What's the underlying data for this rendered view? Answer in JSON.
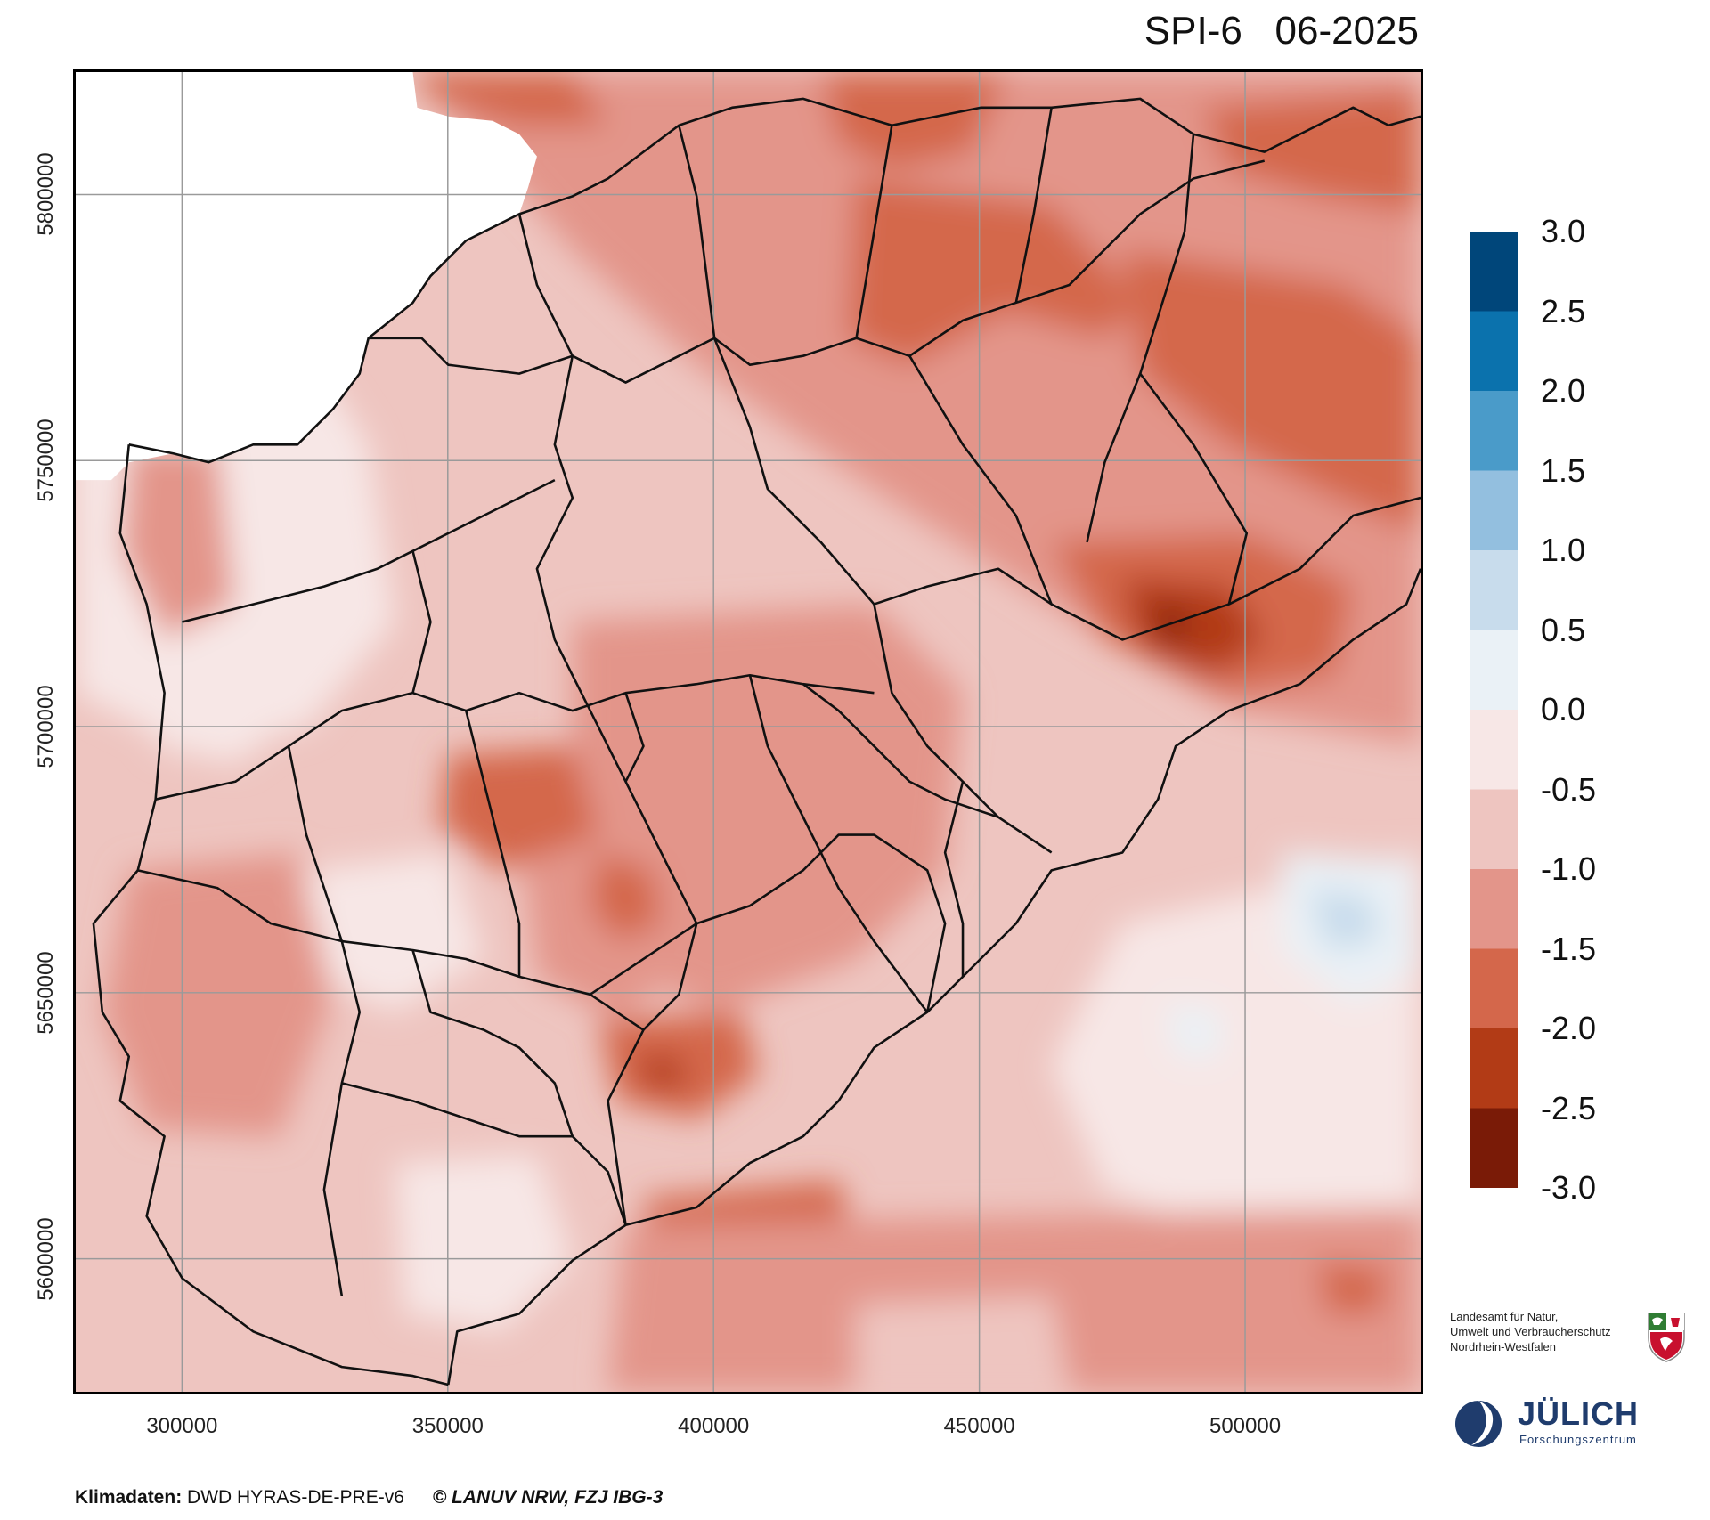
{
  "title": "SPI-6   06-2025",
  "map": {
    "x_ticks": [
      "300000",
      "350000",
      "400000",
      "450000",
      "500000"
    ],
    "y_ticks": [
      "5800000",
      "5750000",
      "5700000",
      "5650000",
      "5600000"
    ],
    "x_tick_values": [
      300000,
      350000,
      400000,
      450000,
      500000
    ],
    "y_tick_values": [
      5800000,
      5750000,
      5700000,
      5650000,
      5600000
    ],
    "xlim": [
      280000,
      533000
    ],
    "ylim": [
      5575000,
      5823000
    ],
    "grid": true
  },
  "colorbar": {
    "labels": [
      "3.0",
      "2.5",
      "2.0",
      "1.5",
      "1.0",
      "0.5",
      "0.0",
      "-0.5",
      "-1.0",
      "-1.5",
      "-2.0",
      "-2.5",
      "-3.0"
    ],
    "colors": [
      "#00467a",
      "#0b72ad",
      "#4a9bc9",
      "#93bfdf",
      "#c8dcec",
      "#eaf1f6",
      "#f7e7e6",
      "#eec5c0",
      "#e3958a",
      "#d4674b",
      "#b23b16",
      "#7a1b07"
    ]
  },
  "footer": {
    "label": "Klimadaten:",
    "source": "DWD HYRAS-DE-PRE-v6",
    "copyright": "© LANUV NRW, FZJ IBG-3"
  },
  "logos": {
    "lanuv_lines": [
      "Landesamt für Natur,",
      "Umwelt und Verbraucherschutz",
      "Nordrhein-Westfalen"
    ],
    "juelich_name": "JÜLICH",
    "juelich_sub": "Forschungszentrum"
  }
}
